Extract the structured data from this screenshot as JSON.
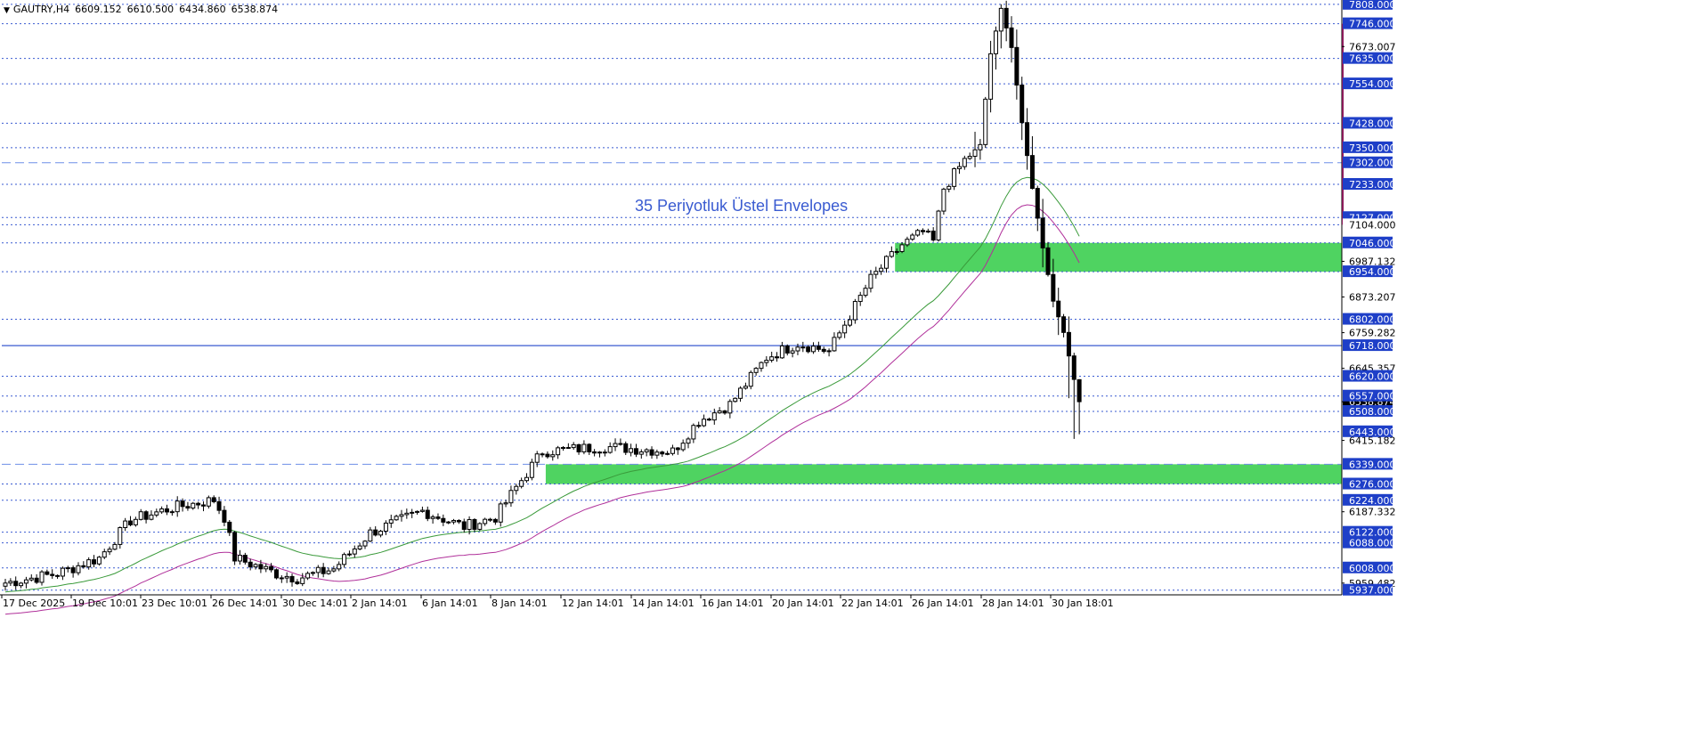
{
  "header": {
    "symbol": "GAUTRY,H4",
    "open": "6609.152",
    "high": "6610.500",
    "low": "6434.860",
    "close": "6538.874"
  },
  "colors": {
    "background": "#ffffff",
    "level_line": "#3a5bd1",
    "zone": "#4fd361",
    "ema_fast": "#3a9a3a",
    "ema_slow": "#b0309a",
    "bull_candle": "#ffffff",
    "bear_candle": "#000000",
    "annotation": "#3a5bd1",
    "price_tag": "#1e3fc8"
  },
  "chart_data": {
    "type": "candlestick",
    "title": "GAUTRY,H4",
    "annotation": "35 Periyotluk Üstel Envelopes",
    "ylim": [
      5922,
      7816
    ],
    "x_tick_labels": [
      "17 Dec 2025",
      "19 Dec 10:01",
      "23 Dec 10:01",
      "26 Dec 14:01",
      "30 Dec 14:01",
      "2 Jan 14:01",
      "6 Jan 14:01",
      "8 Jan 14:01",
      "12 Jan 14:01",
      "14 Jan 14:01",
      "16 Jan 14:01",
      "20 Jan 14:01",
      "22 Jan 14:01",
      "26 Jan 14:01",
      "28 Jan 14:01",
      "30 Jan 18:01"
    ],
    "price_levels": [
      {
        "value": 7808.0,
        "label": "7808.000",
        "style": "dotted",
        "highlight": true
      },
      {
        "value": 7746.0,
        "label": "7746.000",
        "style": "dotted",
        "highlight": true
      },
      {
        "value": 7635.0,
        "label": "7635.000",
        "style": "dotted",
        "highlight": true
      },
      {
        "value": 7554.0,
        "label": "7554.000",
        "style": "dotted",
        "highlight": true
      },
      {
        "value": 7428.0,
        "label": "7428.000",
        "style": "dotted",
        "highlight": true
      },
      {
        "value": 7350.0,
        "label": "7350.000",
        "style": "dotted",
        "highlight": true
      },
      {
        "value": 7302.0,
        "label": "7302.000",
        "style": "dashed",
        "highlight": true
      },
      {
        "value": 7233.0,
        "label": "7233.000",
        "style": "dotted",
        "highlight": true
      },
      {
        "value": 7127.0,
        "label": "7127.000",
        "style": "dotted",
        "highlight": true
      },
      {
        "value": 7104.0,
        "label": "7104.000",
        "style": "dotted",
        "highlight": false
      },
      {
        "value": 7046.0,
        "label": "7046.000",
        "style": "dotted",
        "highlight": true
      },
      {
        "value": 6954.0,
        "label": "6954.000",
        "style": "dotted",
        "highlight": true
      },
      {
        "value": 6802.0,
        "label": "6802.000",
        "style": "dotted",
        "highlight": true
      },
      {
        "value": 6718.0,
        "label": "6718.000",
        "style": "solid",
        "highlight": true
      },
      {
        "value": 6620.0,
        "label": "6620.000",
        "style": "dotted",
        "highlight": true
      },
      {
        "value": 6557.0,
        "label": "6557.000",
        "style": "dotted",
        "highlight": true
      },
      {
        "value": 6508.0,
        "label": "6508.000",
        "style": "dotted",
        "highlight": true
      },
      {
        "value": 6443.0,
        "label": "6443.000",
        "style": "dotted",
        "highlight": true
      },
      {
        "value": 6339.0,
        "label": "6339.000",
        "style": "dashed",
        "highlight": true
      },
      {
        "value": 6276.0,
        "label": "6276.000",
        "style": "dotted",
        "highlight": true
      },
      {
        "value": 6224.0,
        "label": "6224.000",
        "style": "dotted",
        "highlight": true
      },
      {
        "value": 6122.0,
        "label": "6122.000",
        "style": "dotted",
        "highlight": true
      },
      {
        "value": 6088.0,
        "label": "6088.000",
        "style": "dotted",
        "highlight": true
      },
      {
        "value": 6008.0,
        "label": "6008.000",
        "style": "dotted",
        "highlight": true
      },
      {
        "value": 5937.0,
        "label": "5937.000",
        "style": "dotted",
        "highlight": true
      }
    ],
    "scale_labels": [
      {
        "value": 7673.007,
        "label": "7673.007"
      },
      {
        "value": 6987.132,
        "label": "6987.132"
      },
      {
        "value": 6873.207,
        "label": "6873.207"
      },
      {
        "value": 6759.282,
        "label": "6759.282"
      },
      {
        "value": 6645.357,
        "label": "6645.357"
      },
      {
        "value": 6538.874,
        "label": "6538.874"
      },
      {
        "value": 6415.182,
        "label": "6415.182"
      },
      {
        "value": 6187.332,
        "label": "6187.332"
      },
      {
        "value": 5959.482,
        "label": "5959.482"
      }
    ],
    "zones": [
      {
        "from_label": "22 Jan 14:01",
        "to": "right_edge",
        "low": 6954,
        "high": 7046
      },
      {
        "from_label": "8 Jan 14:01",
        "to": "right_edge",
        "low": 6276,
        "high": 6339
      }
    ],
    "candles_count": 207,
    "anchors": [
      {
        "i": 0,
        "p": 5960
      },
      {
        "i": 10,
        "p": 5990
      },
      {
        "i": 18,
        "p": 6040
      },
      {
        "i": 24,
        "p": 6160
      },
      {
        "i": 32,
        "p": 6200
      },
      {
        "i": 40,
        "p": 6225
      },
      {
        "i": 42,
        "p": 6170
      },
      {
        "i": 44,
        "p": 6040
      },
      {
        "i": 52,
        "p": 5990
      },
      {
        "i": 56,
        "p": 5975
      },
      {
        "i": 63,
        "p": 6005
      },
      {
        "i": 70,
        "p": 6120
      },
      {
        "i": 80,
        "p": 6190
      },
      {
        "i": 88,
        "p": 6140
      },
      {
        "i": 94,
        "p": 6170
      },
      {
        "i": 98,
        "p": 6265
      },
      {
        "i": 103,
        "p": 6380
      },
      {
        "i": 115,
        "p": 6395
      },
      {
        "i": 128,
        "p": 6380
      },
      {
        "i": 133,
        "p": 6478
      },
      {
        "i": 139,
        "p": 6530
      },
      {
        "i": 146,
        "p": 6680
      },
      {
        "i": 152,
        "p": 6725
      },
      {
        "i": 158,
        "p": 6700
      },
      {
        "i": 166,
        "p": 6930
      },
      {
        "i": 172,
        "p": 7040
      },
      {
        "i": 176,
        "p": 7080
      },
      {
        "i": 178,
        "p": 7050
      },
      {
        "i": 180,
        "p": 7220
      },
      {
        "i": 184,
        "p": 7310
      },
      {
        "i": 187,
        "p": 7360
      },
      {
        "i": 189,
        "p": 7650
      },
      {
        "i": 191,
        "p": 7795
      },
      {
        "i": 193,
        "p": 7670
      },
      {
        "i": 195,
        "p": 7430
      },
      {
        "i": 197,
        "p": 7220
      },
      {
        "i": 199,
        "p": 7030
      },
      {
        "i": 201,
        "p": 6860
      },
      {
        "i": 203,
        "p": 6760
      },
      {
        "i": 205,
        "p": 6610
      },
      {
        "i": 206,
        "p": 6539
      }
    ],
    "ema_fast_period": 35,
    "ema_slow_offset_pct": -1.2
  }
}
